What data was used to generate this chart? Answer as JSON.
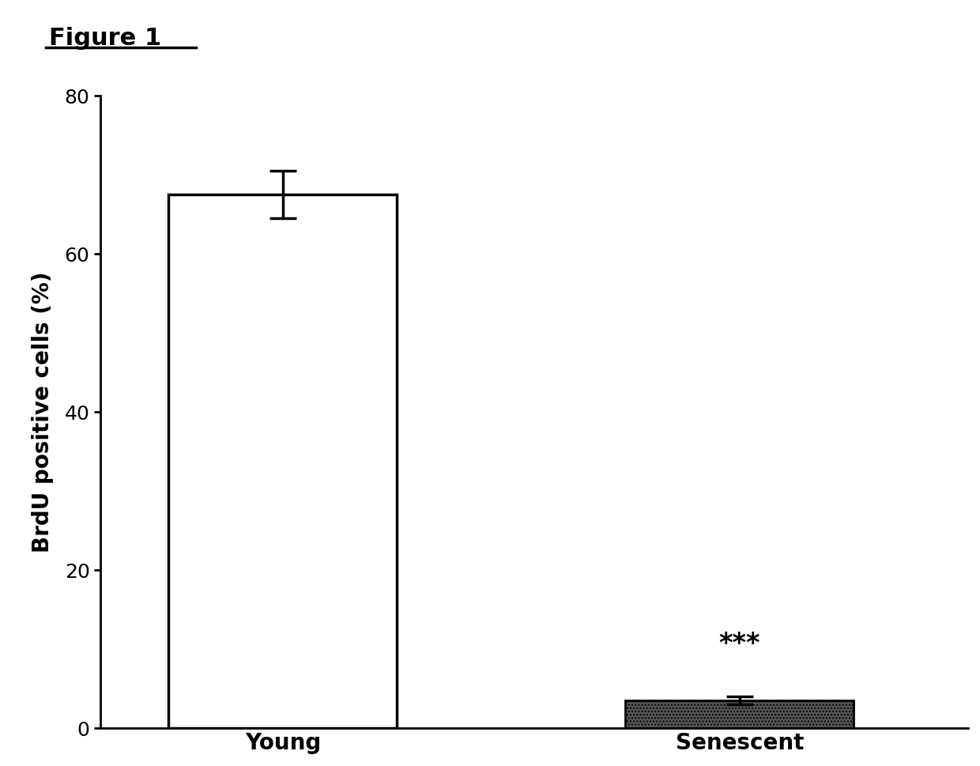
{
  "categories": [
    "Young",
    "Senescent"
  ],
  "values": [
    67.5,
    3.5
  ],
  "errors": [
    3.0,
    0.5
  ],
  "bar_colors": [
    "white",
    "#555555"
  ],
  "bar_edgecolors": [
    "black",
    "black"
  ],
  "bar_linewidth": [
    2.5,
    2.0
  ],
  "bar_hatches": [
    null,
    "...."
  ],
  "ylabel": "BrdU positive cells (%)",
  "ylim": [
    0,
    80
  ],
  "yticks": [
    0,
    20,
    40,
    60,
    80
  ],
  "figure_label": "Figure 1",
  "significance_label": "***",
  "bar_width": 0.5,
  "background_color": "#ffffff",
  "ylabel_fontsize": 20,
  "tick_fontsize": 18,
  "xlabel_fontsize": 20,
  "figure_label_fontsize": 22,
  "sig_fontsize": 24
}
